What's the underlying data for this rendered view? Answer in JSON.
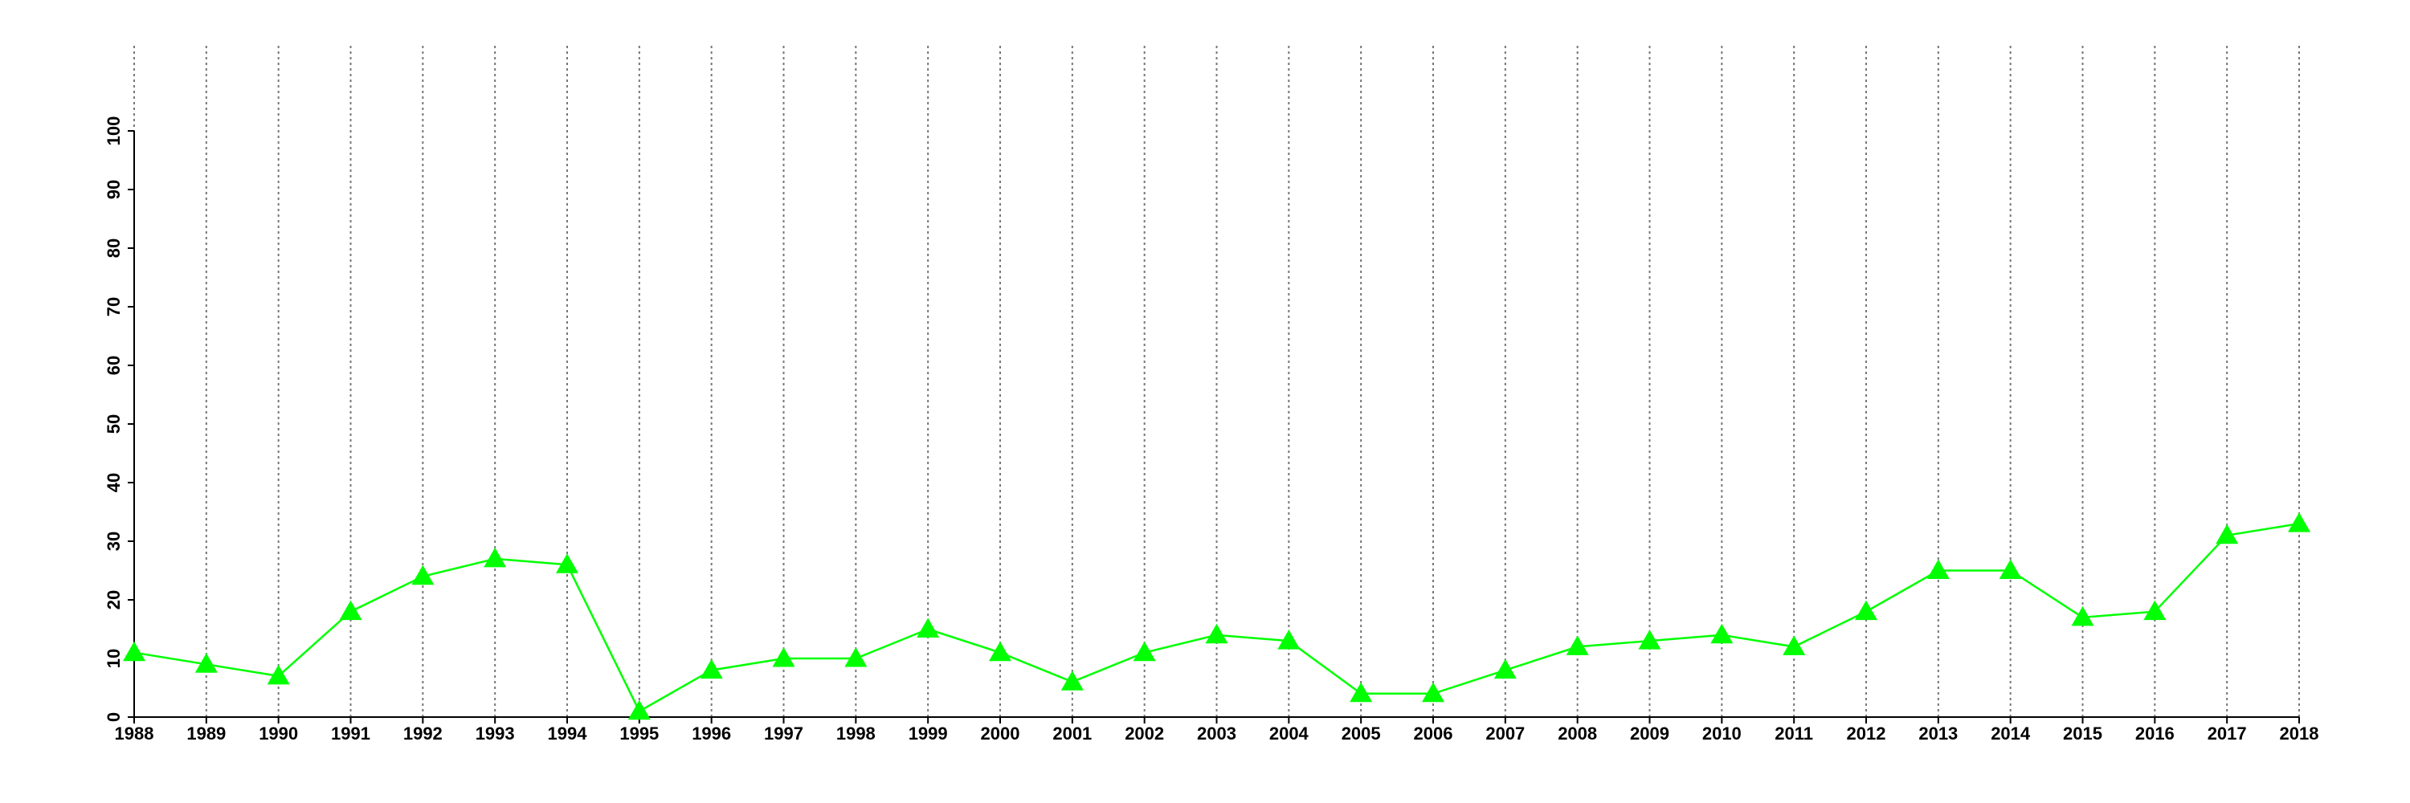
{
  "chart_data": {
    "type": "line",
    "x": [
      1988,
      1989,
      1990,
      1991,
      1992,
      1993,
      1994,
      1995,
      1996,
      1997,
      1998,
      1999,
      2000,
      2001,
      2002,
      2003,
      2004,
      2005,
      2006,
      2007,
      2008,
      2009,
      2010,
      2011,
      2012,
      2013,
      2014,
      2015,
      2016,
      2017,
      2018
    ],
    "values": [
      11,
      9,
      7,
      18,
      24,
      27,
      26,
      1,
      8,
      10,
      10,
      15,
      11,
      6,
      11,
      14,
      13,
      4,
      4,
      8,
      12,
      13,
      14,
      12,
      18,
      25,
      25,
      17,
      18,
      31,
      33
    ],
    "color": "#00ff00",
    "marker": "triangle",
    "xlim": [
      1988,
      2018
    ],
    "xticks": [
      1988,
      1989,
      1990,
      1991,
      1992,
      1993,
      1994,
      1995,
      1996,
      1997,
      1998,
      1999,
      2000,
      2001,
      2002,
      2003,
      2004,
      2005,
      2006,
      2007,
      2008,
      2009,
      2010,
      2011,
      2012,
      2013,
      2014,
      2015,
      2016,
      2017,
      2018
    ],
    "ylim": [
      0,
      100
    ],
    "yticks": [
      0,
      10,
      20,
      30,
      40,
      50,
      60,
      70,
      80,
      90,
      100
    ],
    "grid": true
  }
}
